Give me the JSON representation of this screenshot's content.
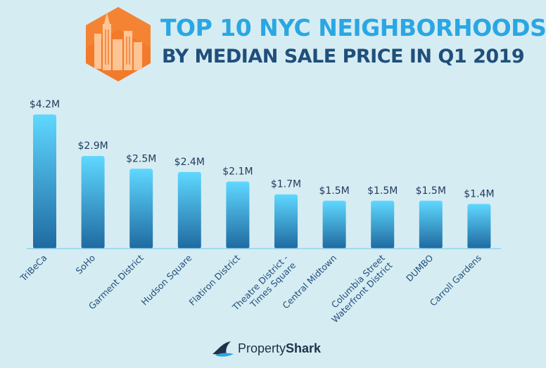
{
  "header": {
    "title_line1": "TOP 10 NYC NEIGHBORHOODS",
    "title_line2": "BY MEDIAN SALE PRICE IN Q1 2019"
  },
  "footer": {
    "brand_part1": "Property",
    "brand_part2": "Shark",
    "logo_icon": "shark-fin-icon"
  },
  "colors": {
    "background": "#d6ecf3",
    "bar_top": "#5fd8ff",
    "bar_bottom": "#1f6aa0",
    "title_accent": "#2aa7e3",
    "title_dark": "#1f4f7a",
    "baseline": "#8fd3ea",
    "hexagon": "#f27a2a"
  },
  "chart_data": {
    "type": "bar",
    "title": "TOP 10 NYC NEIGHBORHOODS BY MEDIAN SALE PRICE IN Q1 2019",
    "xlabel": "",
    "ylabel": "",
    "categories": [
      "TriBeCa",
      "SoHo",
      "Garment District",
      "Hudson Square",
      "Flatiron District",
      "Theatre District - Times Square",
      "Central Midtown",
      "Columbia Street Waterfront District",
      "DUMBO",
      "Carroll Gardens"
    ],
    "category_lines": [
      [
        "TriBeCa"
      ],
      [
        "SoHo"
      ],
      [
        "Garment District"
      ],
      [
        "Hudson Square"
      ],
      [
        "Flatiron District"
      ],
      [
        "Theatre District -",
        "Times Square"
      ],
      [
        "Central Midtown"
      ],
      [
        "Columbia Street",
        "Waterfront District"
      ],
      [
        "DUMBO"
      ],
      [
        "Carroll Gardens"
      ]
    ],
    "values": [
      4.2,
      2.9,
      2.5,
      2.4,
      2.1,
      1.7,
      1.5,
      1.5,
      1.5,
      1.4
    ],
    "value_labels": [
      "$4.2M",
      "$2.9M",
      "$2.5M",
      "$2.4M",
      "$2.1M",
      "$1.7M",
      "$1.5M",
      "$1.5M",
      "$1.5M",
      "$1.4M"
    ],
    "ylim": [
      0,
      4.2
    ],
    "grid": false,
    "legend": "none"
  }
}
